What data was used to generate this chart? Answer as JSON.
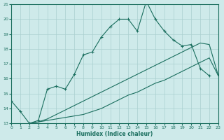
{
  "xlabel": "Humidex (Indice chaleur)",
  "bg_color": "#ceeaea",
  "grid_color": "#aacfcf",
  "line_color": "#1a6e5e",
  "xlim": [
    0,
    23
  ],
  "ylim": [
    13,
    21
  ],
  "xticks": [
    0,
    1,
    2,
    3,
    4,
    5,
    6,
    7,
    8,
    9,
    10,
    11,
    12,
    13,
    14,
    15,
    16,
    17,
    18,
    19,
    20,
    21,
    22,
    23
  ],
  "yticks": [
    13,
    14,
    15,
    16,
    17,
    18,
    19,
    20,
    21
  ],
  "line1_x": [
    0,
    1,
    2,
    3,
    4,
    5,
    6,
    7,
    8,
    9,
    10,
    11,
    12,
    13,
    14,
    15,
    16,
    17,
    18,
    19,
    20,
    21,
    22
  ],
  "line1_y": [
    14.5,
    13.8,
    13.0,
    13.2,
    15.3,
    15.5,
    15.3,
    16.3,
    17.6,
    17.8,
    18.8,
    19.5,
    20.0,
    20.0,
    19.2,
    21.2,
    20.0,
    19.2,
    18.6,
    18.2,
    18.3,
    16.7,
    16.2
  ],
  "line2_x": [
    2,
    3,
    4,
    5,
    6,
    7,
    8,
    9,
    10,
    11,
    12,
    13,
    14,
    15,
    16,
    17,
    18,
    19,
    20,
    21,
    22,
    23
  ],
  "line2_y": [
    13.0,
    13.1,
    13.2,
    13.3,
    13.4,
    13.5,
    13.6,
    13.8,
    14.0,
    14.3,
    14.6,
    14.9,
    15.1,
    15.4,
    15.7,
    15.9,
    16.2,
    16.5,
    16.8,
    17.1,
    17.4,
    16.2
  ],
  "line3_x": [
    2,
    3,
    4,
    5,
    6,
    7,
    8,
    9,
    10,
    11,
    12,
    13,
    14,
    15,
    16,
    17,
    18,
    19,
    20,
    21,
    22,
    23
  ],
  "line3_y": [
    13.0,
    13.1,
    13.3,
    13.6,
    13.9,
    14.2,
    14.5,
    14.8,
    15.1,
    15.4,
    15.7,
    16.0,
    16.3,
    16.6,
    16.9,
    17.2,
    17.5,
    17.8,
    18.1,
    18.4,
    18.3,
    16.2
  ]
}
